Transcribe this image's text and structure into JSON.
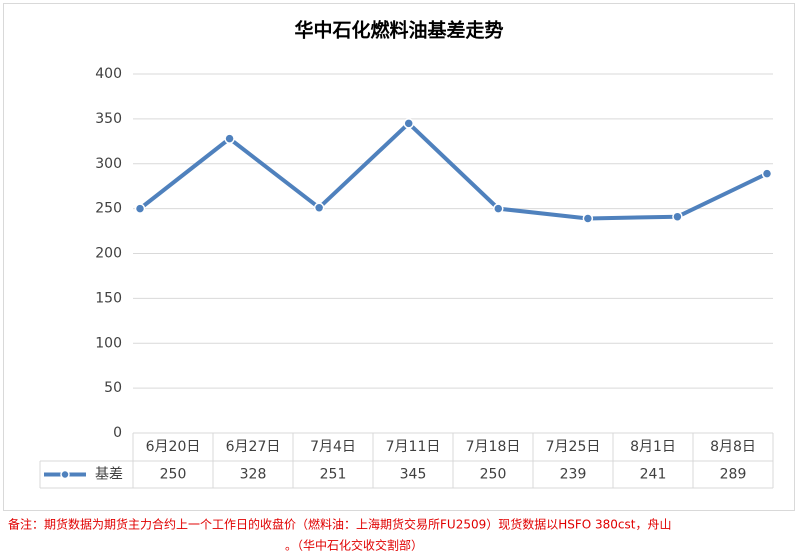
{
  "chart_data": {
    "type": "line",
    "title": "华中石化燃料油基差走势",
    "categories": [
      "6月20日",
      "6月27日",
      "7月4日",
      "7月11日",
      "7月18日",
      "7月25日",
      "8月1日",
      "8月8日"
    ],
    "series": [
      {
        "name": "基差",
        "color": "#4f81bd",
        "values": [
          250,
          328,
          251,
          345,
          250,
          239,
          241,
          289
        ]
      }
    ],
    "ylim": [
      0,
      400
    ],
    "yticks": [
      0,
      50,
      100,
      150,
      200,
      250,
      300,
      350,
      400
    ],
    "grid": true
  },
  "notes": [
    "备注：期货数据为期货主力合约上一个工作日的收盘价（燃料油：上海期货交易所FU2509）现货数据以HSFO 380cst，舟山",
    "。（华中石化交收交割部）"
  ]
}
